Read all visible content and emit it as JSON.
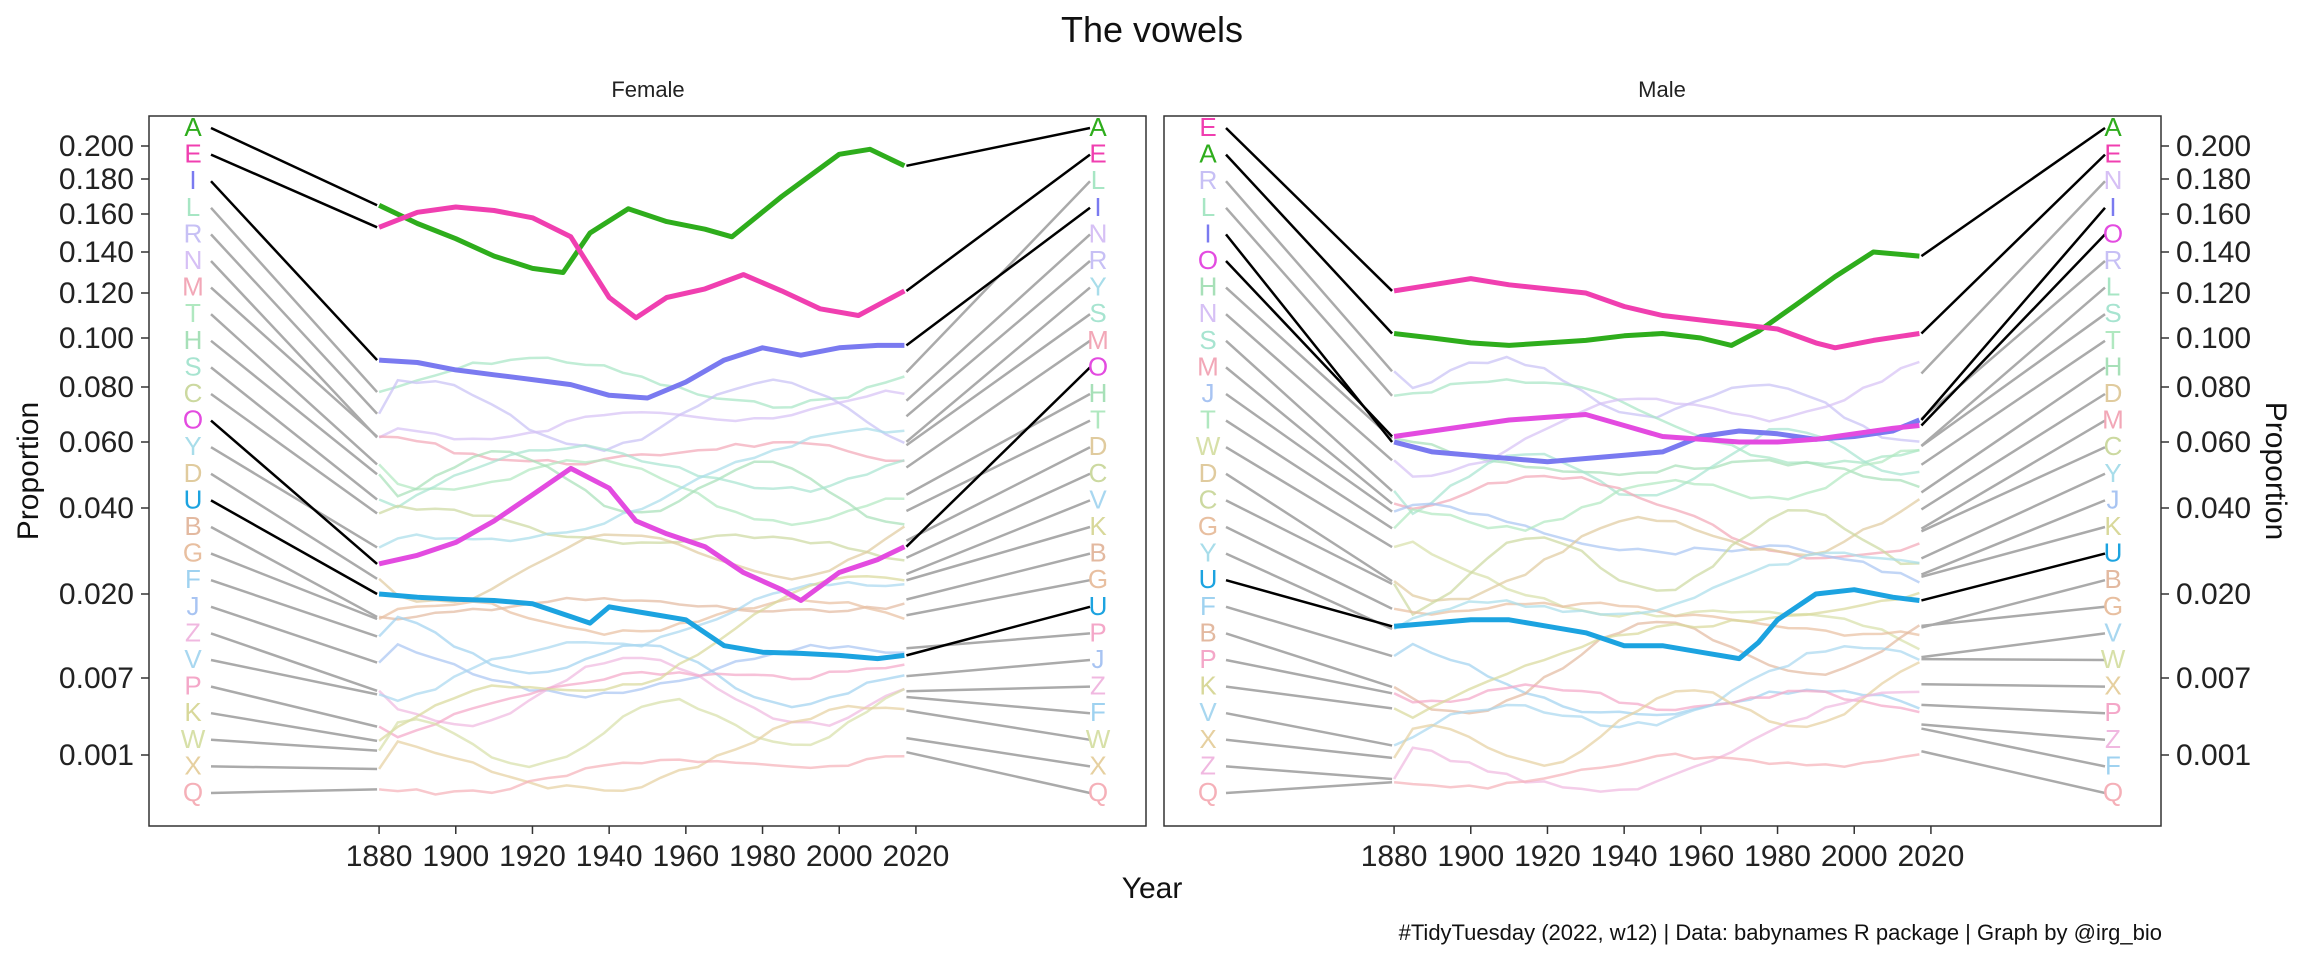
{
  "chart_data": {
    "type": "line",
    "title": "The vowels",
    "xlabel": "Year",
    "ylabel": "Proportion",
    "caption": "#TidyTuesday (2022, w12) | Data: babynames R package | Graph by @irg_bio",
    "x_ticks": [
      "1880",
      "1900",
      "1920",
      "1940",
      "1960",
      "1980",
      "2000",
      "2020"
    ],
    "y_ticks": [
      "0.200",
      "0.180",
      "0.160",
      "0.140",
      "0.120",
      "0.100",
      "0.080",
      "0.060",
      "0.040",
      "0.020",
      "0.007",
      "0.001"
    ],
    "xlim": [
      1820,
      2080
    ],
    "scale": "rank-based (tick positions as drawn)",
    "highlight_letters": [
      "A",
      "E",
      "I",
      "O",
      "U"
    ],
    "letter_colors": {
      "A": "#2ead1c",
      "E": "#f03fb0",
      "I": "#7a7af0",
      "O": "#e34be0",
      "U": "#1ca3e0",
      "B": "#e3b9a0",
      "C": "#ccd9a0",
      "D": "#e0cb9e",
      "F": "#9fd2f0",
      "G": "#e8bfa0",
      "H": "#a7e0b8",
      "J": "#a8c4f2",
      "K": "#d8d89a",
      "L": "#a7e6c4",
      "M": "#f2a7b7",
      "N": "#d6c0f5",
      "P": "#f4a7c8",
      "Q": "#f5b0b8",
      "R": "#c7c0f5",
      "S": "#a7e4d0",
      "T": "#b0e8c0",
      "V": "#a8d7f0",
      "W": "#d7e0a8",
      "X": "#e6d0a0",
      "Y": "#a8ddea",
      "Z": "#f0b8e0"
    },
    "panels": [
      {
        "name": "Female",
        "left_labels": [
          "A",
          "E",
          "I",
          "L",
          "R",
          "N",
          "M",
          "T",
          "H",
          "S",
          "C",
          "O",
          "Y",
          "D",
          "U",
          "B",
          "G",
          "F",
          "J",
          "Z",
          "V",
          "P",
          "K",
          "W",
          "X",
          "Q"
        ],
        "right_labels": [
          "A",
          "E",
          "L",
          "I",
          "N",
          "R",
          "Y",
          "S",
          "M",
          "O",
          "H",
          "T",
          "D",
          "C",
          "V",
          "K",
          "B",
          "G",
          "U",
          "P",
          "J",
          "Z",
          "F",
          "W",
          "X",
          "Q"
        ],
        "series": [
          {
            "name": "A",
            "x": [
              1880,
              1890,
              1900,
              1910,
              1920,
              1928,
              1935,
              1945,
              1955,
              1965,
              1972,
              1985,
              2000,
              2008,
              2017
            ],
            "y": [
              0.165,
              0.155,
              0.147,
              0.138,
              0.132,
              0.13,
              0.15,
              0.163,
              0.156,
              0.152,
              0.148,
              0.17,
              0.195,
              0.198,
              0.188
            ]
          },
          {
            "name": "E",
            "x": [
              1880,
              1890,
              1900,
              1910,
              1920,
              1930,
              1940,
              1947,
              1955,
              1965,
              1975,
              1985,
              1995,
              2005,
              2017
            ],
            "y": [
              0.153,
              0.161,
              0.164,
              0.162,
              0.158,
              0.148,
              0.118,
              0.109,
              0.118,
              0.122,
              0.129,
              0.121,
              0.113,
              0.11,
              0.121
            ]
          },
          {
            "name": "I",
            "x": [
              1880,
              1890,
              1900,
              1910,
              1920,
              1930,
              1940,
              1950,
              1960,
              1970,
              1980,
              1990,
              2000,
              2010,
              2017
            ],
            "y": [
              0.091,
              0.09,
              0.087,
              0.085,
              0.083,
              0.081,
              0.077,
              0.076,
              0.082,
              0.091,
              0.096,
              0.093,
              0.096,
              0.097,
              0.097
            ]
          },
          {
            "name": "O",
            "x": [
              1880,
              1890,
              1900,
              1910,
              1920,
              1930,
              1940,
              1947,
              1955,
              1965,
              1975,
              1985,
              1990,
              2000,
              2010,
              2017
            ],
            "y": [
              0.027,
              0.029,
              0.032,
              0.037,
              0.044,
              0.052,
              0.046,
              0.037,
              0.034,
              0.031,
              0.025,
              0.021,
              0.019,
              0.025,
              0.028,
              0.031
            ]
          },
          {
            "name": "U",
            "x": [
              1880,
              1890,
              1900,
              1910,
              1920,
              1930,
              1935,
              1940,
              1950,
              1960,
              1970,
              1980,
              1990,
              2000,
              2010,
              2017
            ],
            "y": [
              0.02,
              0.0195,
              0.0192,
              0.019,
              0.0185,
              0.0165,
              0.0155,
              0.018,
              0.017,
              0.016,
              0.012,
              0.011,
              0.0108,
              0.0105,
              0.01,
              0.0105
            ]
          }
        ]
      },
      {
        "name": "Male",
        "left_labels": [
          "E",
          "A",
          "R",
          "L",
          "I",
          "O",
          "H",
          "N",
          "S",
          "M",
          "J",
          "T",
          "W",
          "D",
          "C",
          "G",
          "Y",
          "U",
          "F",
          "B",
          "P",
          "K",
          "V",
          "X",
          "Z",
          "Q"
        ],
        "right_labels": [
          "A",
          "E",
          "N",
          "I",
          "O",
          "R",
          "L",
          "S",
          "T",
          "H",
          "D",
          "M",
          "C",
          "Y",
          "J",
          "K",
          "U",
          "B",
          "G",
          "V",
          "W",
          "X",
          "P",
          "Z",
          "F",
          "Q"
        ],
        "series": [
          {
            "name": "A",
            "x": [
              1880,
              1890,
              1900,
              1910,
              1920,
              1930,
              1940,
              1950,
              1960,
              1968,
              1975,
              1985,
              1995,
              2005,
              2017
            ],
            "y": [
              0.102,
              0.1,
              0.098,
              0.097,
              0.098,
              0.099,
              0.101,
              0.102,
              0.1,
              0.097,
              0.103,
              0.115,
              0.128,
              0.14,
              0.138
            ]
          },
          {
            "name": "E",
            "x": [
              1880,
              1890,
              1900,
              1910,
              1920,
              1930,
              1940,
              1950,
              1960,
              1970,
              1980,
              1990,
              1995,
              2005,
              2017
            ],
            "y": [
              0.121,
              0.124,
              0.127,
              0.124,
              0.122,
              0.12,
              0.114,
              0.11,
              0.108,
              0.106,
              0.104,
              0.098,
              0.096,
              0.099,
              0.102
            ]
          },
          {
            "name": "I",
            "x": [
              1880,
              1890,
              1900,
              1910,
              1920,
              1930,
              1940,
              1950,
              1960,
              1970,
              1980,
              1990,
              2000,
              2010,
              2017
            ],
            "y": [
              0.06,
              0.057,
              0.056,
              0.055,
              0.054,
              0.055,
              0.056,
              0.057,
              0.062,
              0.064,
              0.063,
              0.061,
              0.062,
              0.064,
              0.068
            ]
          },
          {
            "name": "O",
            "x": [
              1880,
              1890,
              1900,
              1910,
              1920,
              1930,
              1940,
              1950,
              1960,
              1970,
              1980,
              1990,
              2000,
              2010,
              2017
            ],
            "y": [
              0.062,
              0.064,
              0.066,
              0.068,
              0.069,
              0.07,
              0.066,
              0.062,
              0.061,
              0.06,
              0.06,
              0.061,
              0.063,
              0.065,
              0.066
            ]
          },
          {
            "name": "U",
            "x": [
              1880,
              1890,
              1900,
              1910,
              1920,
              1930,
              1940,
              1950,
              1960,
              1970,
              1975,
              1980,
              1990,
              2000,
              2010,
              2017
            ],
            "y": [
              0.015,
              0.0155,
              0.016,
              0.016,
              0.015,
              0.014,
              0.012,
              0.012,
              0.011,
              0.01,
              0.0125,
              0.016,
              0.02,
              0.021,
              0.0195,
              0.019
            ]
          }
        ]
      }
    ]
  }
}
